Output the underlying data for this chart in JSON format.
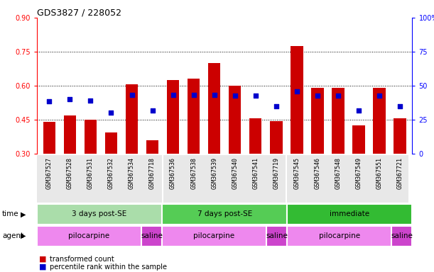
{
  "title": "GDS3827 / 228052",
  "samples": [
    "GSM367527",
    "GSM367528",
    "GSM367531",
    "GSM367532",
    "GSM367534",
    "GSM367718",
    "GSM367536",
    "GSM367538",
    "GSM367539",
    "GSM367540",
    "GSM367541",
    "GSM367719",
    "GSM367545",
    "GSM367546",
    "GSM367548",
    "GSM367549",
    "GSM367551",
    "GSM367721"
  ],
  "bar_values": [
    0.44,
    0.47,
    0.45,
    0.395,
    0.605,
    0.36,
    0.625,
    0.63,
    0.7,
    0.6,
    0.455,
    0.445,
    0.775,
    0.59,
    0.59,
    0.425,
    0.59,
    0.455
  ],
  "dot_values": [
    0.53,
    0.54,
    0.535,
    0.48,
    0.56,
    0.49,
    0.56,
    0.56,
    0.56,
    0.555,
    0.555,
    0.51,
    0.575,
    0.555,
    0.555,
    0.49,
    0.555,
    0.51
  ],
  "bar_bottom": 0.3,
  "ylim_left": [
    0.3,
    0.9
  ],
  "ylim_right": [
    0,
    100
  ],
  "yticks_left": [
    0.3,
    0.45,
    0.6,
    0.75,
    0.9
  ],
  "yticks_right": [
    0,
    25,
    50,
    75,
    100
  ],
  "bar_color": "#cc0000",
  "dot_color": "#0000cc",
  "time_groups": [
    {
      "label": "3 days post-SE",
      "start": 0,
      "end": 5,
      "color": "#aaddaa"
    },
    {
      "label": "7 days post-SE",
      "start": 6,
      "end": 11,
      "color": "#55cc55"
    },
    {
      "label": "immediate",
      "start": 12,
      "end": 17,
      "color": "#33bb33"
    }
  ],
  "agent_groups": [
    {
      "label": "pilocarpine",
      "start": 0,
      "end": 4,
      "color": "#ee88ee"
    },
    {
      "label": "saline",
      "start": 5,
      "end": 5,
      "color": "#cc44cc"
    },
    {
      "label": "pilocarpine",
      "start": 6,
      "end": 10,
      "color": "#ee88ee"
    },
    {
      "label": "saline",
      "start": 11,
      "end": 11,
      "color": "#cc44cc"
    },
    {
      "label": "pilocarpine",
      "start": 12,
      "end": 16,
      "color": "#ee88ee"
    },
    {
      "label": "saline",
      "start": 17,
      "end": 17,
      "color": "#cc44cc"
    }
  ],
  "legend_bar_label": "transformed count",
  "legend_dot_label": "percentile rank within the sample",
  "title_fontsize": 9,
  "tick_label_fontsize": 6.0,
  "bar_label_fontsize": 7.0,
  "row_label_fontsize": 7.5,
  "group_label_fontsize": 7.5
}
